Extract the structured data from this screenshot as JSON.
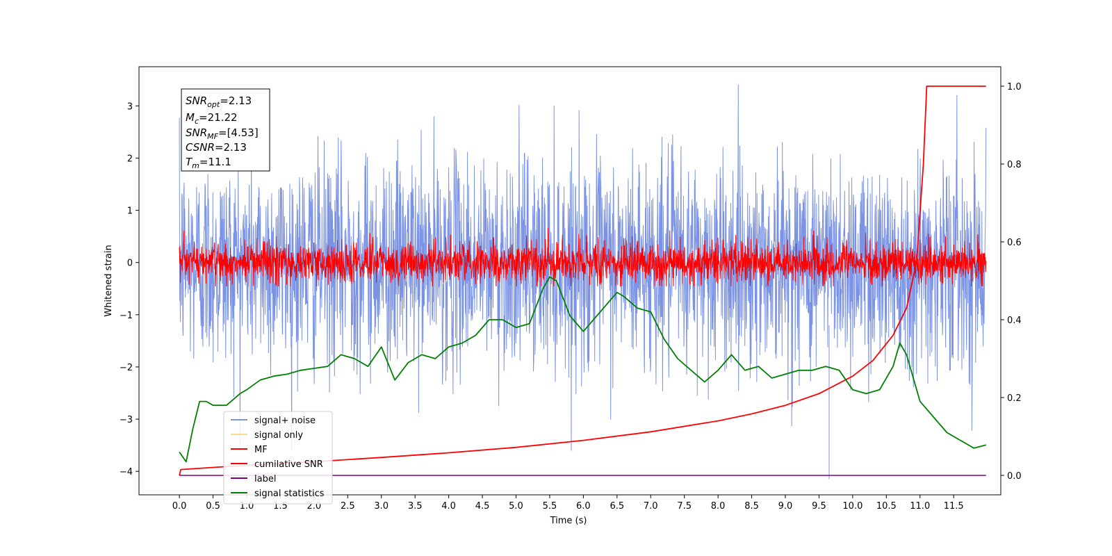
{
  "chart_data": {
    "type": "line",
    "xlabel": "Time (s)",
    "ylabel": "Whitened strain",
    "xlim": [
      -0.6,
      12.2
    ],
    "ylim": [
      -4.45,
      3.75
    ],
    "ylim_right": [
      -0.05,
      1.05
    ],
    "x_ticks": [
      "0.0",
      "0.5",
      "1.0",
      "1.5",
      "2.0",
      "2.5",
      "3.0",
      "3.5",
      "4.0",
      "4.5",
      "5.0",
      "5.5",
      "6.0",
      "6.5",
      "7.0",
      "7.5",
      "8.0",
      "8.5",
      "9.0",
      "9.5",
      "10.0",
      "10.5",
      "11.0",
      "11.5"
    ],
    "y_ticks": [
      "3",
      "2",
      "1",
      "0",
      "−1",
      "−2",
      "−3",
      "−4"
    ],
    "y_right_ticks": [
      "1.0",
      "0.8",
      "0.6",
      "0.4",
      "0.2",
      "0.0"
    ],
    "annotation": {
      "lines": [
        {
          "base": "SNR",
          "sub": "opt",
          "value": "=2.13"
        },
        {
          "base": "M",
          "sub": "c",
          "value": "=21.22"
        },
        {
          "base": "SNR",
          "sub": "MF",
          "value": "=[4.53]"
        },
        {
          "base": "CSNR",
          "sub": "",
          "value": "=2.13"
        },
        {
          "base": "T",
          "sub": "m",
          "value": "=11.1"
        }
      ]
    },
    "legend": {
      "position": "lower-left",
      "entries": [
        {
          "name": "signal+ noise",
          "color": "#7b93e6"
        },
        {
          "name": "signal only",
          "color": "#fed88a"
        },
        {
          "name": "MF",
          "color": "#ff0000"
        },
        {
          "name": "cumilative SNR",
          "color": "#ff0000"
        },
        {
          "name": "label",
          "color": "#800080"
        },
        {
          "name": "signal statistics",
          "color": "#008000"
        }
      ]
    },
    "series": [
      {
        "name": "signal+ noise",
        "axis": "left",
        "color": "#7b93e6",
        "kind": "noise",
        "x_range": [
          0,
          11.98
        ],
        "center": 0.0,
        "spread": 1.0,
        "spike_x": 9.65,
        "spike_y": -4.15
      },
      {
        "name": "MF",
        "axis": "left",
        "color": "#ff0000",
        "kind": "noise",
        "x_range": [
          0,
          11.98
        ],
        "center": 0.0,
        "spread": 0.2
      },
      {
        "name": "cumilative SNR",
        "axis": "right",
        "color": "#ff0000",
        "x": [
          0.0,
          0.02,
          1.0,
          2.0,
          3.0,
          4.0,
          5.0,
          6.0,
          7.0,
          8.0,
          8.5,
          9.0,
          9.5,
          10.0,
          10.3,
          10.6,
          10.8,
          10.95,
          11.05,
          11.1,
          11.98
        ],
        "y": [
          0.0,
          0.015,
          0.026,
          0.035,
          0.046,
          0.058,
          0.072,
          0.09,
          0.112,
          0.14,
          0.158,
          0.18,
          0.21,
          0.255,
          0.295,
          0.36,
          0.43,
          0.55,
          0.8,
          1.0,
          1.0
        ]
      },
      {
        "name": "label",
        "axis": "right",
        "color": "#800080",
        "x": [
          0.0,
          11.98
        ],
        "y": [
          0.0,
          0.0
        ]
      },
      {
        "name": "signal statistics",
        "axis": "right",
        "color": "#008000",
        "x": [
          0.0,
          0.1,
          0.2,
          0.3,
          0.4,
          0.5,
          0.7,
          0.9,
          1.0,
          1.2,
          1.4,
          1.6,
          1.8,
          2.0,
          2.2,
          2.4,
          2.6,
          2.8,
          3.0,
          3.2,
          3.4,
          3.6,
          3.8,
          4.0,
          4.2,
          4.4,
          4.6,
          4.8,
          5.0,
          5.2,
          5.4,
          5.5,
          5.6,
          5.8,
          6.0,
          6.2,
          6.4,
          6.5,
          6.6,
          6.8,
          7.0,
          7.2,
          7.4,
          7.6,
          7.8,
          8.0,
          8.2,
          8.4,
          8.6,
          8.8,
          9.0,
          9.2,
          9.4,
          9.6,
          9.8,
          10.0,
          10.2,
          10.4,
          10.6,
          10.7,
          10.8,
          11.0,
          11.2,
          11.4,
          11.6,
          11.8,
          11.98
        ],
        "y": [
          0.06,
          0.035,
          0.12,
          0.19,
          0.19,
          0.18,
          0.18,
          0.21,
          0.22,
          0.245,
          0.255,
          0.26,
          0.27,
          0.275,
          0.28,
          0.31,
          0.3,
          0.28,
          0.33,
          0.245,
          0.29,
          0.31,
          0.3,
          0.33,
          0.34,
          0.36,
          0.4,
          0.4,
          0.38,
          0.39,
          0.48,
          0.51,
          0.5,
          0.41,
          0.37,
          0.41,
          0.45,
          0.47,
          0.46,
          0.43,
          0.42,
          0.35,
          0.3,
          0.27,
          0.24,
          0.27,
          0.31,
          0.27,
          0.28,
          0.25,
          0.26,
          0.27,
          0.27,
          0.28,
          0.27,
          0.22,
          0.21,
          0.22,
          0.28,
          0.34,
          0.31,
          0.19,
          0.15,
          0.11,
          0.09,
          0.07,
          0.078
        ]
      }
    ]
  }
}
